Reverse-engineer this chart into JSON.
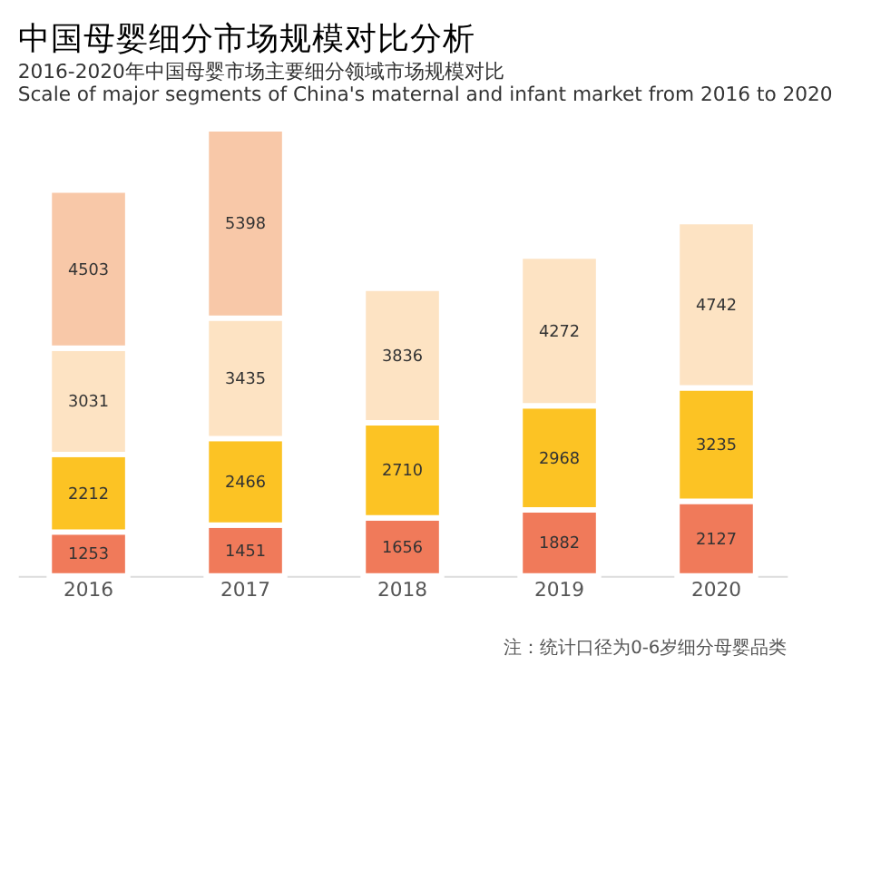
{
  "chart_data": {
    "type": "bar",
    "stacked": true,
    "title": "中国母婴细分市场规模对比分析",
    "subtitle": "2016-2020年中国母婴市场主要细分领域市场规模对比\nScale of major segments of China's maternal and infant market from 2016 to 2020",
    "categories": [
      "2016",
      "2017",
      "2018",
      "2019",
      "2020"
    ],
    "series": [
      {
        "color": "#f07a5a",
        "values": [
          1253,
          1451,
          1656,
          1882,
          2127
        ]
      },
      {
        "color": "#fcc324",
        "values": [
          2212,
          2466,
          2710,
          2968,
          3235
        ]
      },
      {
        "color": "#fde3c3",
        "values": [
          3031,
          3435,
          3836,
          4272,
          4742
        ]
      },
      {
        "color": "#f8c8a8",
        "values": [
          4503,
          5398,
          null,
          null,
          null
        ]
      }
    ],
    "data_labels": true,
    "grid": false,
    "tick_labels": "x",
    "annotations": [
      "注：统计口径为0-6岁细分母婴品类"
    ]
  }
}
